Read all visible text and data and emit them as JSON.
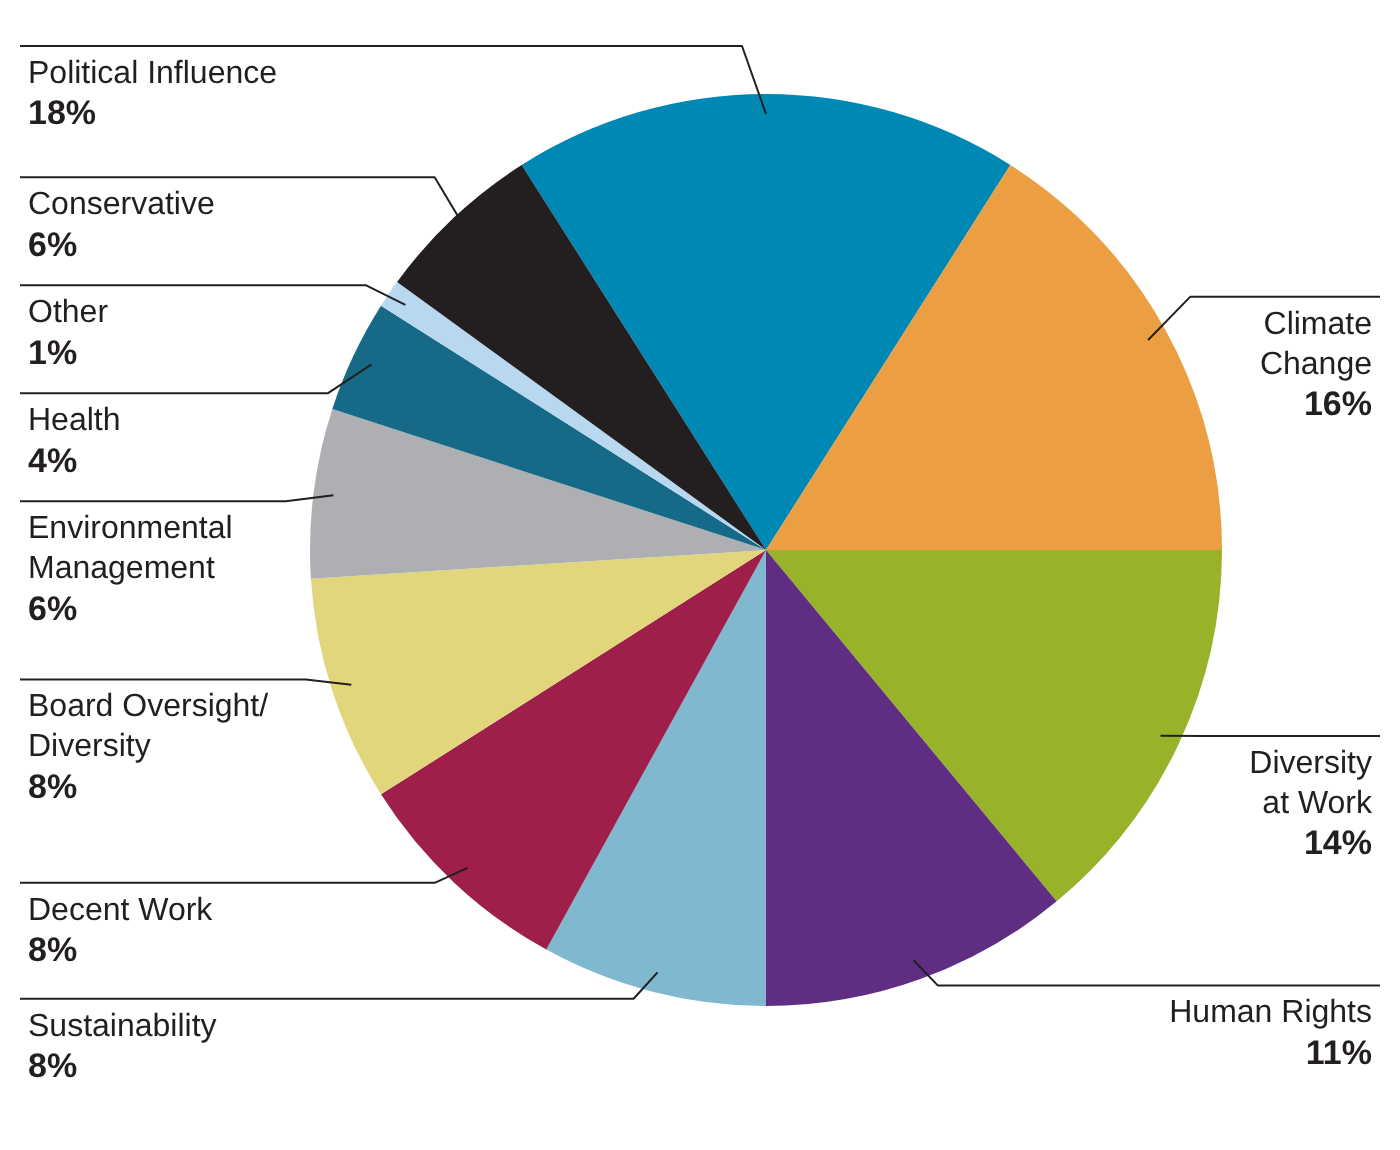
{
  "chart_data": {
    "type": "pie",
    "categories": [
      "Political Influence",
      "Climate\nChange",
      "Diversity\nat Work",
      "Human Rights",
      "Sustainability",
      "Decent Work",
      "Board Oversight/\nDiversity",
      "Environmental\nManagement",
      "Health",
      "Other",
      "Conservative"
    ],
    "values": [
      18,
      16,
      14,
      11,
      8,
      8,
      8,
      6,
      4,
      1,
      6
    ],
    "value_labels": [
      "18%",
      "16%",
      "14%",
      "11%",
      "8%",
      "8%",
      "8%",
      "6%",
      "4%",
      "1%",
      "6%"
    ],
    "colors": [
      "#0088b5",
      "#eb9e42",
      "#98b22a",
      "#5f2d82",
      "#7fb8cf",
      "#9e1f49",
      "#e2d67c",
      "#aeafb2",
      "#166a87",
      "#b8d8ef",
      "#231f20"
    ],
    "legend": false
  }
}
